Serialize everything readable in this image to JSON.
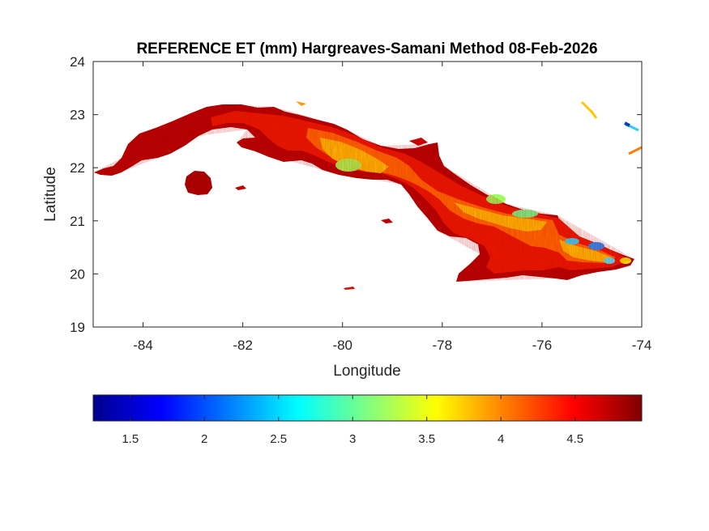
{
  "title": "REFERENCE ET (mm) Hargreaves-Samani Method  08-Feb-2026",
  "map": {
    "xlabel": "Longitude",
    "ylabel": "Latitude",
    "xlim": [
      -85,
      -74
    ],
    "ylim": [
      19,
      24
    ],
    "x_ticks": [
      -84,
      -82,
      -80,
      -78,
      -76,
      -74
    ],
    "y_ticks": [
      19,
      20,
      21,
      22,
      23,
      24
    ],
    "x_tick_labels": [
      "-84",
      "-82",
      "-80",
      "-78",
      "-76",
      "-74"
    ],
    "y_tick_labels": [
      "19",
      "20",
      "21",
      "22",
      "23",
      "24"
    ],
    "region": "Cuba"
  },
  "colorbar": {
    "colormap": "jet",
    "range": [
      1.25,
      4.95
    ],
    "ticks": [
      1.5,
      2,
      2.5,
      3,
      3.5,
      4,
      4.5
    ],
    "tick_labels": [
      "1.5",
      "2",
      "2.5",
      "3",
      "3.5",
      "4",
      "4.5"
    ],
    "placement": "bottom"
  },
  "colors": {
    "high": "#a10000",
    "mid_high": "#ff3000",
    "mid": "#ffd000",
    "low_mid": "#a8ff50",
    "low": "#00c8ff",
    "lowest": "#0000c8"
  }
}
